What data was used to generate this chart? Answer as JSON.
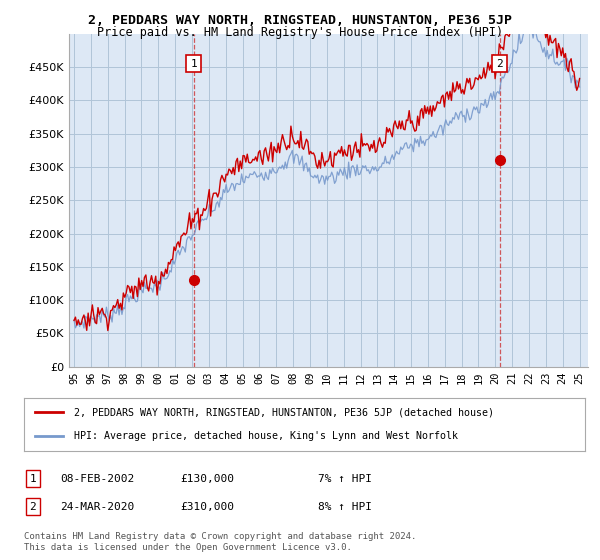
{
  "title": "2, PEDDARS WAY NORTH, RINGSTEAD, HUNSTANTON, PE36 5JP",
  "subtitle": "Price paid vs. HM Land Registry's House Price Index (HPI)",
  "red_label": "2, PEDDARS WAY NORTH, RINGSTEAD, HUNSTANTON, PE36 5JP (detached house)",
  "blue_label": "HPI: Average price, detached house, King's Lynn and West Norfolk",
  "annotation1": {
    "num": "1",
    "date": "08-FEB-2002",
    "price": "£130,000",
    "hpi": "7% ↑ HPI",
    "year": 2002.1
  },
  "annotation2": {
    "num": "2",
    "date": "24-MAR-2020",
    "price": "£310,000",
    "hpi": "8% ↑ HPI",
    "year": 2020.25
  },
  "footer1": "Contains HM Land Registry data © Crown copyright and database right 2024.",
  "footer2": "This data is licensed under the Open Government Licence v3.0.",
  "ylim": [
    0,
    500000
  ],
  "yticks": [
    0,
    50000,
    100000,
    150000,
    200000,
    250000,
    300000,
    350000,
    400000,
    450000
  ],
  "xmin": 1994.7,
  "xmax": 2025.5,
  "red_color": "#cc0000",
  "blue_color": "#7799cc",
  "vline_color": "#cc3333",
  "chart_bg": "#dde8f5",
  "background_color": "#ffffff",
  "grid_color": "#b0c4d8"
}
